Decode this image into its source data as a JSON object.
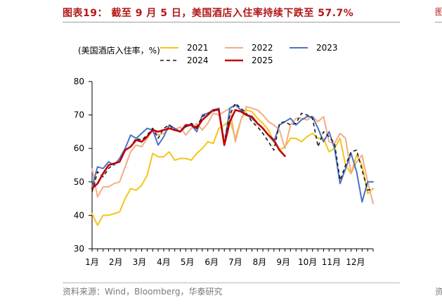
{
  "page": {
    "title": "图表19： 截至 9 月 5 日，美国酒店入住率持续下跌至 57.7%",
    "source": "资料来源：Wind，Bloomberg，华泰研究"
  },
  "chart_data": {
    "type": "line",
    "title": "",
    "ylabel": "(美国酒店入住率，%)",
    "xlabel": "",
    "ylim": [
      30,
      80
    ],
    "yticks": [
      30,
      40,
      50,
      60,
      70,
      80
    ],
    "x_range": [
      0,
      51
    ],
    "x_unit": "week of year",
    "categories": [
      "1月",
      "2月",
      "3月",
      "4月",
      "5月",
      "6月",
      "7月",
      "8月",
      "9月",
      "10月",
      "11月",
      "12月"
    ],
    "category_positions": [
      0,
      4.3,
      8.6,
      13.0,
      17.3,
      21.7,
      26.0,
      30.4,
      34.7,
      39.1,
      43.4,
      47.8
    ],
    "legend_position": "top",
    "series": [
      {
        "name": "2021",
        "color": "#f5c518",
        "dash": "solid",
        "width": 2,
        "x": [
          0,
          1,
          2,
          3,
          4,
          5,
          6,
          7,
          8,
          9,
          10,
          11,
          12,
          13,
          14,
          15,
          16,
          17,
          18,
          19,
          20,
          21,
          22,
          23,
          24,
          25,
          26,
          27,
          28,
          29,
          30,
          31,
          32,
          33,
          34,
          35,
          36,
          37,
          38,
          39,
          40,
          41,
          42,
          43,
          44,
          45,
          46,
          47,
          48,
          49,
          50,
          51
        ],
        "values": [
          40.5,
          37.0,
          40.0,
          40.0,
          40.5,
          41.0,
          45.0,
          48.0,
          47.5,
          49.0,
          52.0,
          58.5,
          57.5,
          57.5,
          59.0,
          56.5,
          57.0,
          57.0,
          56.5,
          58.5,
          60.0,
          62.0,
          61.5,
          66.0,
          67.0,
          68.5,
          63.0,
          68.5,
          71.5,
          71.0,
          69.0,
          67.5,
          65.5,
          62.0,
          59.5,
          60.5,
          63.0,
          63.0,
          62.0,
          63.5,
          64.5,
          63.0,
          63.0,
          59.0,
          60.0,
          63.0,
          55.0,
          52.5,
          58.0,
          55.0,
          46.5,
          48.0
        ]
      },
      {
        "name": "2022",
        "color": "#f2ac86",
        "dash": "solid",
        "width": 2,
        "x": [
          0,
          1,
          2,
          3,
          4,
          5,
          6,
          7,
          8,
          9,
          10,
          11,
          12,
          13,
          14,
          15,
          16,
          17,
          18,
          19,
          20,
          21,
          22,
          23,
          24,
          25,
          26,
          27,
          28,
          29,
          30,
          31,
          32,
          33,
          34,
          35,
          36,
          37,
          38,
          39,
          40,
          41,
          42,
          43,
          44,
          45,
          46,
          47,
          48,
          49,
          50,
          51
        ],
        "values": [
          54.0,
          45.5,
          48.5,
          48.5,
          49.5,
          50.0,
          54.5,
          59.0,
          61.0,
          60.5,
          63.0,
          66.0,
          64.0,
          64.5,
          66.0,
          65.5,
          66.5,
          64.0,
          66.0,
          67.5,
          65.5,
          67.5,
          70.5,
          70.0,
          71.0,
          72.0,
          62.0,
          68.5,
          72.5,
          72.0,
          71.5,
          70.0,
          68.0,
          67.0,
          65.5,
          60.0,
          67.0,
          69.0,
          69.0,
          68.5,
          69.5,
          68.0,
          69.5,
          62.0,
          61.5,
          64.5,
          63.0,
          52.5,
          56.0,
          58.0,
          50.0,
          43.5
        ]
      },
      {
        "name": "2023",
        "color": "#4a72c4",
        "dash": "solid",
        "width": 2,
        "x": [
          0,
          1,
          2,
          3,
          4,
          5,
          6,
          7,
          8,
          9,
          10,
          11,
          12,
          13,
          14,
          15,
          16,
          17,
          18,
          19,
          20,
          21,
          22,
          23,
          24,
          25,
          26,
          27,
          28,
          29,
          30,
          31,
          32,
          33,
          34,
          35,
          36,
          37,
          38,
          39,
          40,
          41,
          42,
          43,
          44,
          45,
          46,
          47,
          48,
          49,
          50,
          51
        ],
        "values": [
          48.5,
          54.5,
          54.0,
          56.0,
          55.0,
          57.0,
          60.0,
          64.0,
          63.0,
          64.5,
          66.0,
          65.5,
          61.0,
          63.5,
          67.0,
          66.0,
          65.0,
          66.5,
          67.0,
          65.0,
          70.0,
          70.5,
          71.5,
          72.0,
          61.0,
          72.0,
          73.0,
          71.5,
          70.0,
          69.0,
          67.5,
          66.0,
          64.0,
          62.0,
          67.0,
          68.0,
          69.0,
          67.0,
          68.5,
          69.5,
          69.5,
          66.0,
          62.0,
          65.0,
          60.0,
          49.5,
          54.0,
          58.5,
          53.0,
          44.0,
          50.0,
          50.0
        ]
      },
      {
        "name": "2024",
        "color": "#1a1a1a",
        "dash": "dashed",
        "width": 1.6,
        "x": [
          0,
          1,
          2,
          3,
          4,
          5,
          6,
          7,
          8,
          9,
          10,
          11,
          12,
          13,
          14,
          15,
          16,
          17,
          18,
          19,
          20,
          21,
          22,
          23,
          24,
          25,
          26,
          27,
          28,
          29,
          30,
          31,
          32,
          33,
          34,
          35,
          36,
          37,
          38,
          39,
          40,
          41,
          42,
          43,
          44,
          45,
          46,
          47,
          48,
          49,
          50,
          51
        ],
        "values": [
          47.0,
          53.0,
          51.5,
          54.0,
          55.5,
          56.0,
          59.5,
          60.5,
          63.0,
          62.5,
          64.0,
          66.0,
          63.0,
          66.0,
          67.0,
          65.5,
          65.0,
          66.5,
          67.5,
          66.5,
          69.5,
          70.5,
          71.0,
          72.0,
          62.0,
          70.0,
          73.5,
          72.0,
          70.5,
          68.0,
          66.5,
          64.5,
          62.0,
          59.5,
          67.5,
          68.0,
          67.0,
          67.5,
          70.5,
          70.0,
          69.0,
          60.5,
          65.0,
          63.5,
          61.5,
          50.5,
          55.0,
          59.0,
          59.5,
          53.5,
          47.5,
          48.0
        ]
      },
      {
        "name": "2025",
        "color": "#c00000",
        "dash": "solid",
        "width": 2.6,
        "x": [
          0,
          1,
          2,
          3,
          4,
          5,
          6,
          7,
          8,
          9,
          10,
          11,
          12,
          13,
          14,
          15,
          16,
          17,
          18,
          19,
          20,
          21,
          22,
          23,
          24,
          25,
          26,
          27,
          28,
          29,
          30,
          31,
          32,
          33,
          34,
          35
        ],
        "values": [
          48.0,
          49.5,
          52.5,
          55.0,
          55.5,
          56.0,
          59.5,
          60.5,
          62.5,
          62.0,
          63.5,
          65.5,
          65.0,
          65.5,
          66.0,
          65.5,
          65.0,
          67.0,
          67.0,
          66.0,
          68.5,
          70.0,
          71.5,
          71.5,
          61.0,
          68.0,
          71.5,
          71.0,
          70.0,
          69.5,
          67.5,
          66.0,
          64.0,
          62.5,
          59.5,
          57.7
        ]
      }
    ]
  }
}
